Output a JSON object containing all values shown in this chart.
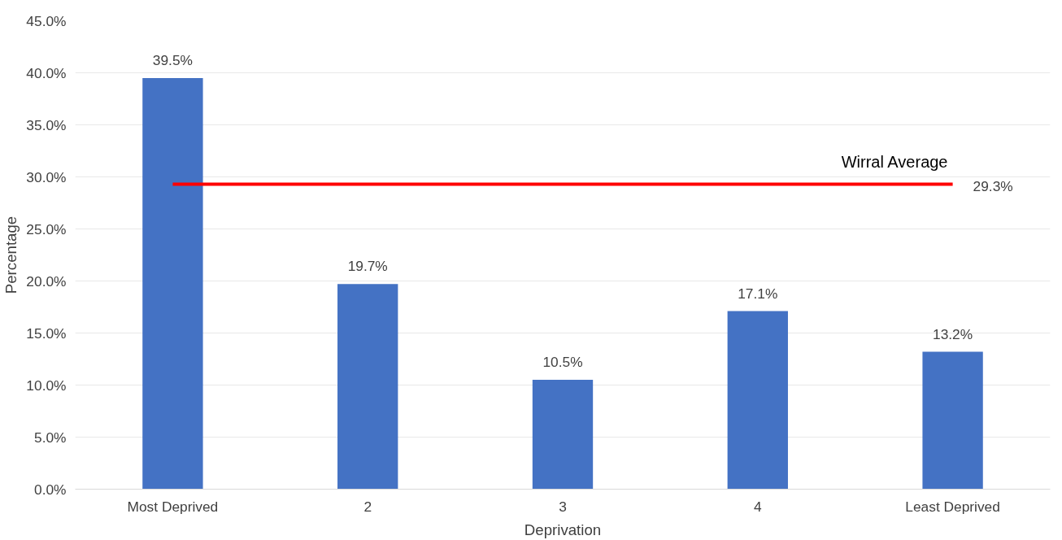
{
  "chart_data": {
    "type": "bar",
    "xlabel": "Deprivation",
    "ylabel": "Percentage",
    "categories": [
      "Most Deprived",
      "2",
      "3",
      "4",
      "Least Deprived"
    ],
    "values": [
      39.5,
      19.7,
      10.5,
      17.1,
      13.2
    ],
    "value_labels": [
      "39.5%",
      "19.7%",
      "10.5%",
      "17.1%",
      "13.2%"
    ],
    "color": "#4472c4",
    "ylim": [
      0,
      45
    ],
    "yticks": [
      {
        "value": 0,
        "label": "0.0%"
      },
      {
        "value": 5,
        "label": "5.0%"
      },
      {
        "value": 10,
        "label": "10.0%"
      },
      {
        "value": 15,
        "label": "15.0%"
      },
      {
        "value": 20,
        "label": "20.0%"
      },
      {
        "value": 25,
        "label": "25.0%"
      },
      {
        "value": 30,
        "label": "30.0%"
      },
      {
        "value": 35,
        "label": "35.0%"
      },
      {
        "value": 40,
        "label": "40.0%"
      },
      {
        "value": 45,
        "label": "45.0%"
      }
    ],
    "grid": "y",
    "ref_lines": [
      {
        "axis": "y",
        "value": 29.3,
        "label": "Wirral Average",
        "color": "#ff0000"
      }
    ],
    "annotations": [
      "29.3%"
    ]
  }
}
